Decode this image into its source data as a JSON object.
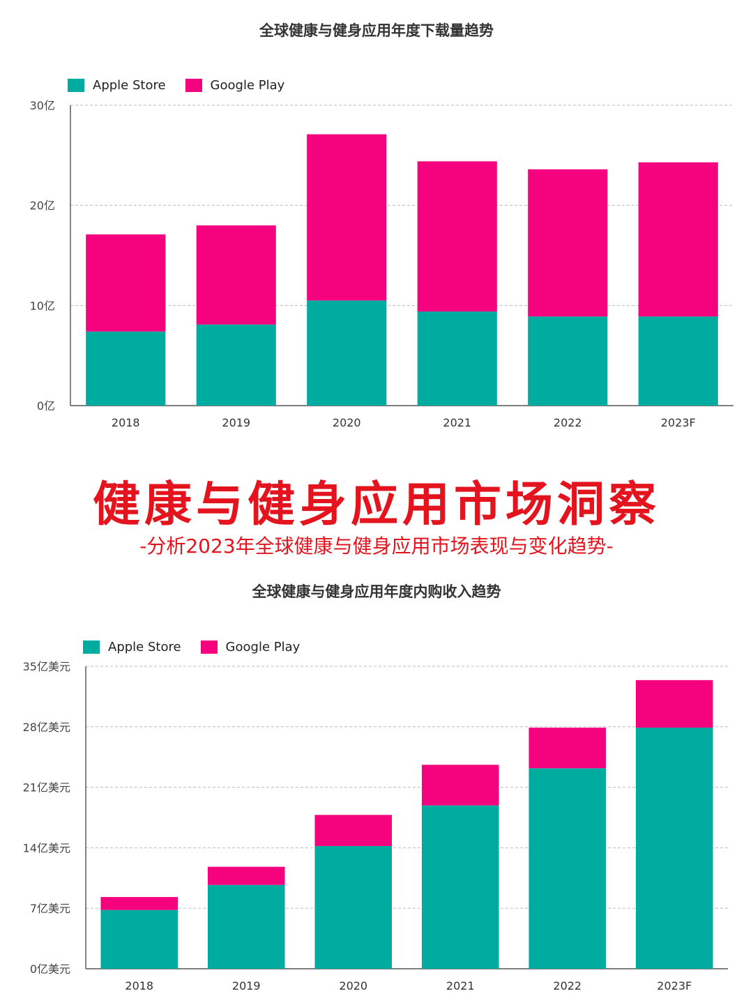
{
  "main_title": "健康与健身应用市场洞察",
  "subtitle": "-分析2023年全球健康与健身应用市场表现与变化趋势-",
  "colors": {
    "apple": "#00ab9f",
    "google": "#f5037f",
    "title_red": "#e3141e"
  },
  "chart_data": [
    {
      "type": "bar",
      "stacked": true,
      "title": "全球健康与健身应用年度下载量趋势",
      "categories": [
        "2018",
        "2019",
        "2020",
        "2021",
        "2022",
        "2023F"
      ],
      "series": [
        {
          "name": "Apple Store",
          "values": [
            7.4,
            8.1,
            10.5,
            9.4,
            8.9,
            8.9
          ]
        },
        {
          "name": "Google Play",
          "values": [
            9.7,
            9.9,
            16.6,
            15.0,
            14.7,
            15.4
          ]
        }
      ],
      "yticks": [
        0,
        10,
        20,
        30
      ],
      "ytick_labels": [
        "0亿",
        "10亿",
        "20亿",
        "30亿"
      ],
      "ylim": [
        0,
        30
      ],
      "legend": "top-left",
      "grid": true
    },
    {
      "type": "bar",
      "stacked": true,
      "title": "全球健康与健身应用年度内购收入趋势",
      "categories": [
        "2018",
        "2019",
        "2020",
        "2021",
        "2022",
        "2023F"
      ],
      "series": [
        {
          "name": "Apple Store",
          "values": [
            6.8,
            9.7,
            14.2,
            18.9,
            23.2,
            27.9
          ]
        },
        {
          "name": "Google Play",
          "values": [
            1.5,
            2.1,
            3.6,
            4.7,
            4.7,
            5.5
          ]
        }
      ],
      "yticks": [
        0,
        7,
        14,
        21,
        28,
        35
      ],
      "ytick_labels": [
        "0亿美元",
        "7亿美元",
        "14亿美元",
        "21亿美元",
        "28亿美元",
        "35亿美元"
      ],
      "ylim": [
        0,
        35
      ],
      "legend": "top-left",
      "grid": true
    }
  ]
}
